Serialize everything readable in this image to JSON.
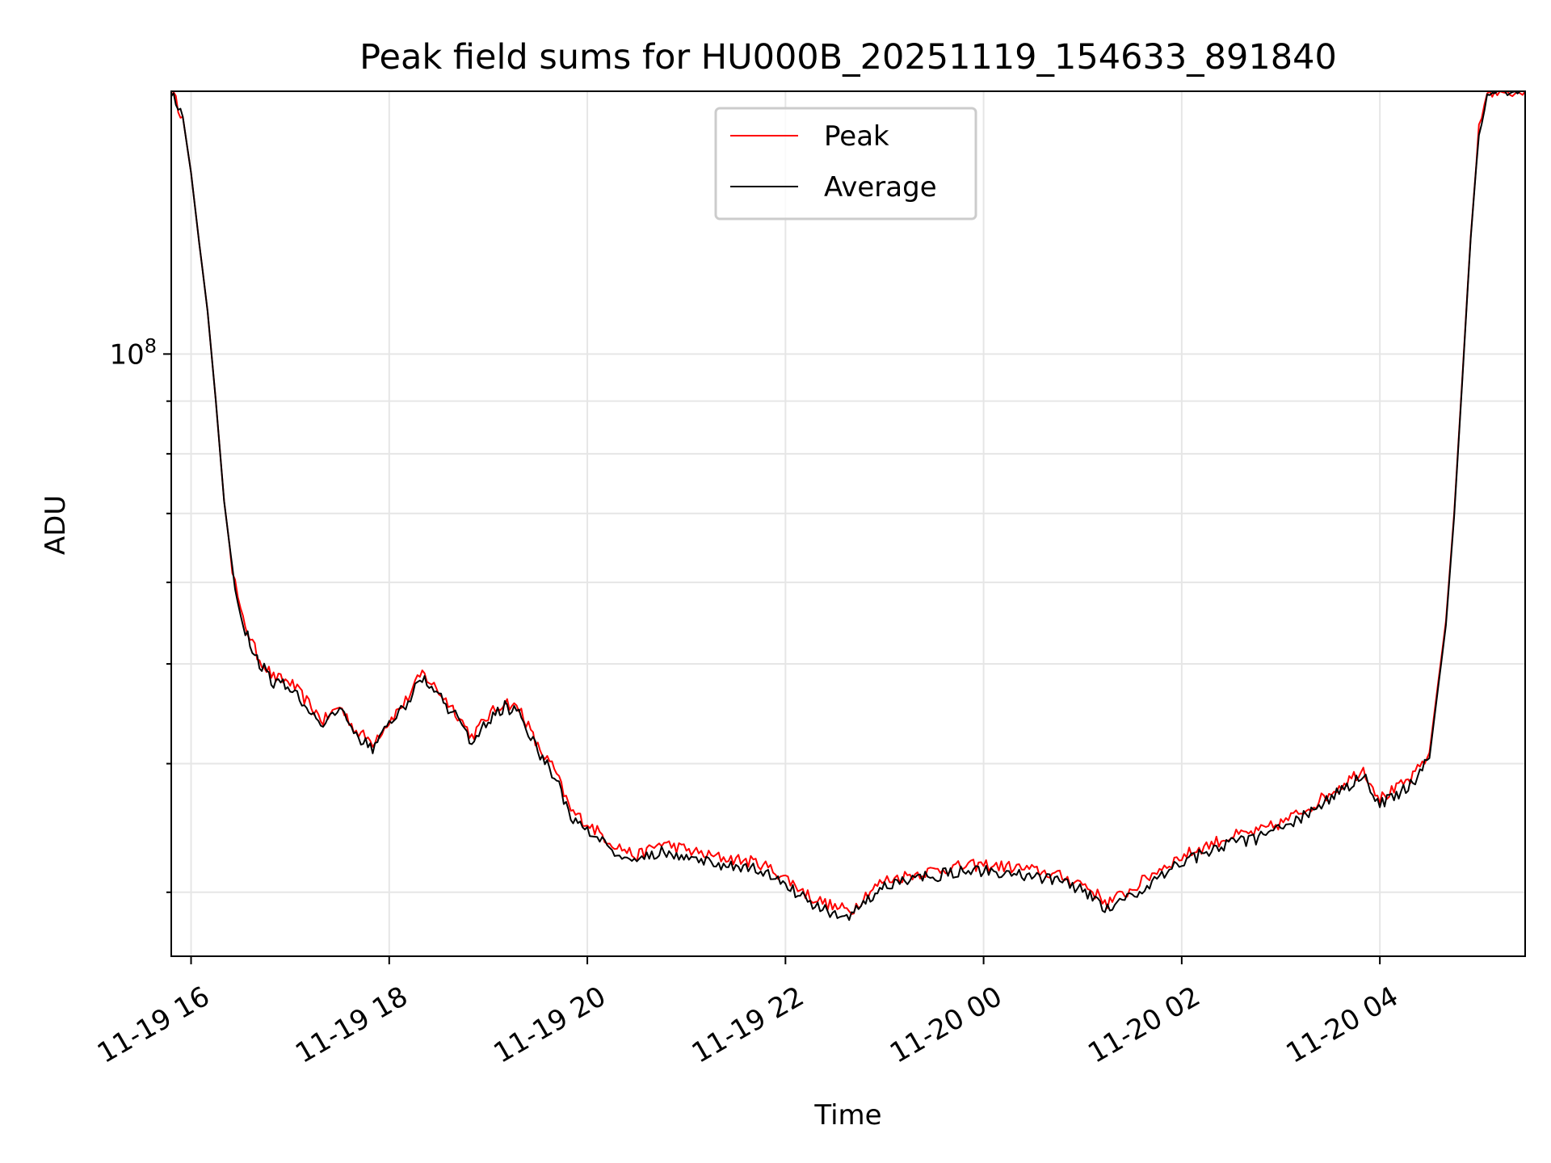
{
  "chart_data": {
    "type": "line",
    "title": "Peak field sums for HU000B_20251119_154633_891840",
    "xlabel": "Time",
    "ylabel": "ADU",
    "yscale": "log",
    "grid": true,
    "legend_position": "upper center",
    "xlim": [
      "2025-11-19 15:48",
      "2025-11-20 05:28"
    ],
    "ylim": [
      26000000,
      180000000
    ],
    "x_ticks": [
      {
        "t": "2025-11-19 16:00",
        "label": "11-19 16"
      },
      {
        "t": "2025-11-19 18:00",
        "label": "11-19 18"
      },
      {
        "t": "2025-11-19 20:00",
        "label": "11-19 20"
      },
      {
        "t": "2025-11-19 22:00",
        "label": "11-19 22"
      },
      {
        "t": "2025-11-20 00:00",
        "label": "11-20 00"
      },
      {
        "t": "2025-11-20 02:00",
        "label": "11-20 02"
      },
      {
        "t": "2025-11-20 04:00",
        "label": "11-20 04"
      }
    ],
    "y_major_ticks": [
      {
        "value": 100000000,
        "base": "10",
        "exp": "8"
      }
    ],
    "y_minor_ticks": [
      30000000,
      40000000,
      50000000,
      60000000,
      70000000,
      80000000,
      90000000,
      200000000
    ],
    "series": [
      {
        "name": "Peak",
        "color": "#ff0000",
        "points": [
          [
            "2025-11-19 15:48",
            180000000
          ],
          [
            "2025-11-19 15:55",
            170000000
          ],
          [
            "2025-11-19 16:00",
            150000000
          ],
          [
            "2025-11-19 16:05",
            128000000
          ],
          [
            "2025-11-19 16:10",
            110000000
          ],
          [
            "2025-11-19 16:15",
            90000000
          ],
          [
            "2025-11-19 16:20",
            72000000
          ],
          [
            "2025-11-19 16:25",
            62000000
          ],
          [
            "2025-11-19 16:30",
            56000000
          ],
          [
            "2025-11-19 16:40",
            51000000
          ],
          [
            "2025-11-19 16:50",
            48500000
          ],
          [
            "2025-11-19 17:00",
            48000000
          ],
          [
            "2025-11-19 17:10",
            46000000
          ],
          [
            "2025-11-19 17:20",
            44000000
          ],
          [
            "2025-11-19 17:30",
            45500000
          ],
          [
            "2025-11-19 17:40",
            43000000
          ],
          [
            "2025-11-19 17:50",
            42000000
          ],
          [
            "2025-11-19 18:00",
            44000000
          ],
          [
            "2025-11-19 18:10",
            46000000
          ],
          [
            "2025-11-19 18:20",
            49000000
          ],
          [
            "2025-11-19 18:30",
            47000000
          ],
          [
            "2025-11-19 18:40",
            45000000
          ],
          [
            "2025-11-19 18:50",
            42500000
          ],
          [
            "2025-11-19 19:00",
            44500000
          ],
          [
            "2025-11-19 19:10",
            46000000
          ],
          [
            "2025-11-19 19:20",
            45000000
          ],
          [
            "2025-11-19 19:30",
            41500000
          ],
          [
            "2025-11-19 19:40",
            39500000
          ],
          [
            "2025-11-19 19:50",
            36000000
          ],
          [
            "2025-11-19 20:00",
            35000000
          ],
          [
            "2025-11-19 20:15",
            33500000
          ],
          [
            "2025-11-19 20:30",
            32500000
          ],
          [
            "2025-11-19 20:45",
            33500000
          ],
          [
            "2025-11-19 21:00",
            33000000
          ],
          [
            "2025-11-19 21:15",
            32500000
          ],
          [
            "2025-11-19 21:30",
            32300000
          ],
          [
            "2025-11-19 21:45",
            32000000
          ],
          [
            "2025-11-19 22:00",
            31000000
          ],
          [
            "2025-11-19 22:15",
            29700000
          ],
          [
            "2025-11-19 22:30",
            29000000
          ],
          [
            "2025-11-19 22:40",
            28800000
          ],
          [
            "2025-11-19 22:50",
            30000000
          ],
          [
            "2025-11-19 23:00",
            30800000
          ],
          [
            "2025-11-19 23:20",
            31300000
          ],
          [
            "2025-11-19 23:40",
            31700000
          ],
          [
            "2025-11-20 00:00",
            31900000
          ],
          [
            "2025-11-20 00:20",
            31700000
          ],
          [
            "2025-11-20 00:40",
            31300000
          ],
          [
            "2025-11-20 01:00",
            30600000
          ],
          [
            "2025-11-20 01:15",
            29300000
          ],
          [
            "2025-11-20 01:30",
            30200000
          ],
          [
            "2025-11-20 01:45",
            31500000
          ],
          [
            "2025-11-20 02:00",
            32500000
          ],
          [
            "2025-11-20 02:15",
            33300000
          ],
          [
            "2025-11-20 02:30",
            34000000
          ],
          [
            "2025-11-20 02:45",
            34300000
          ],
          [
            "2025-11-20 03:00",
            35000000
          ],
          [
            "2025-11-20 03:20",
            36500000
          ],
          [
            "2025-11-20 03:40",
            38500000
          ],
          [
            "2025-11-20 03:50",
            39500000
          ],
          [
            "2025-11-20 04:00",
            37000000
          ],
          [
            "2025-11-20 04:10",
            37800000
          ],
          [
            "2025-11-20 04:20",
            38800000
          ],
          [
            "2025-11-20 04:30",
            41000000
          ],
          [
            "2025-11-20 04:40",
            55000000
          ],
          [
            "2025-11-20 04:45",
            70000000
          ],
          [
            "2025-11-20 04:50",
            95000000
          ],
          [
            "2025-11-20 04:55",
            130000000
          ],
          [
            "2025-11-20 05:00",
            165000000
          ],
          [
            "2025-11-20 05:05",
            180000000
          ],
          [
            "2025-11-20 05:28",
            180000000
          ]
        ]
      },
      {
        "name": "Average",
        "color": "#000000",
        "points": [
          [
            "2025-11-19 15:48",
            180000000
          ],
          [
            "2025-11-19 15:55",
            170000000
          ],
          [
            "2025-11-19 16:00",
            150000000
          ],
          [
            "2025-11-19 16:05",
            128000000
          ],
          [
            "2025-11-19 16:10",
            110000000
          ],
          [
            "2025-11-19 16:15",
            90000000
          ],
          [
            "2025-11-19 16:20",
            72000000
          ],
          [
            "2025-11-19 16:25",
            62000000
          ],
          [
            "2025-11-19 16:30",
            55500000
          ],
          [
            "2025-11-19 16:40",
            50500000
          ],
          [
            "2025-11-19 16:50",
            48000000
          ],
          [
            "2025-11-19 17:00",
            47500000
          ],
          [
            "2025-11-19 17:10",
            45500000
          ],
          [
            "2025-11-19 17:20",
            43500000
          ],
          [
            "2025-11-19 17:30",
            45000000
          ],
          [
            "2025-11-19 17:40",
            42500000
          ],
          [
            "2025-11-19 17:50",
            41500000
          ],
          [
            "2025-11-19 18:00",
            43500000
          ],
          [
            "2025-11-19 18:10",
            45500000
          ],
          [
            "2025-11-19 18:20",
            48500000
          ],
          [
            "2025-11-19 18:30",
            46500000
          ],
          [
            "2025-11-19 18:40",
            44500000
          ],
          [
            "2025-11-19 18:50",
            42000000
          ],
          [
            "2025-11-19 19:00",
            44000000
          ],
          [
            "2025-11-19 19:10",
            45500000
          ],
          [
            "2025-11-19 19:20",
            44500000
          ],
          [
            "2025-11-19 19:30",
            41000000
          ],
          [
            "2025-11-19 19:40",
            39000000
          ],
          [
            "2025-11-19 19:50",
            35500000
          ],
          [
            "2025-11-19 20:00",
            34500000
          ],
          [
            "2025-11-19 20:15",
            33000000
          ],
          [
            "2025-11-19 20:30",
            32000000
          ],
          [
            "2025-11-19 20:45",
            33000000
          ],
          [
            "2025-11-19 21:00",
            32500000
          ],
          [
            "2025-11-19 21:15",
            32000000
          ],
          [
            "2025-11-19 21:30",
            31800000
          ],
          [
            "2025-11-19 21:45",
            31500000
          ],
          [
            "2025-11-19 22:00",
            30500000
          ],
          [
            "2025-11-19 22:15",
            29300000
          ],
          [
            "2025-11-19 22:30",
            28600000
          ],
          [
            "2025-11-19 22:40",
            28400000
          ],
          [
            "2025-11-19 22:50",
            29600000
          ],
          [
            "2025-11-19 23:00",
            30400000
          ],
          [
            "2025-11-19 23:20",
            30900000
          ],
          [
            "2025-11-19 23:40",
            31300000
          ],
          [
            "2025-11-20 00:00",
            31500000
          ],
          [
            "2025-11-20 00:20",
            31300000
          ],
          [
            "2025-11-20 00:40",
            30900000
          ],
          [
            "2025-11-20 01:00",
            30200000
          ],
          [
            "2025-11-20 01:15",
            28900000
          ],
          [
            "2025-11-20 01:30",
            29800000
          ],
          [
            "2025-11-20 01:45",
            31000000
          ],
          [
            "2025-11-20 02:00",
            32000000
          ],
          [
            "2025-11-20 02:15",
            32800000
          ],
          [
            "2025-11-20 02:30",
            33500000
          ],
          [
            "2025-11-20 02:45",
            33800000
          ],
          [
            "2025-11-20 03:00",
            34500000
          ],
          [
            "2025-11-20 03:20",
            36000000
          ],
          [
            "2025-11-20 03:40",
            38000000
          ],
          [
            "2025-11-20 03:50",
            39000000
          ],
          [
            "2025-11-20 04:00",
            36500000
          ],
          [
            "2025-11-20 04:10",
            37300000
          ],
          [
            "2025-11-20 04:20",
            38300000
          ],
          [
            "2025-11-20 04:30",
            40500000
          ],
          [
            "2025-11-20 04:40",
            54500000
          ],
          [
            "2025-11-20 04:45",
            69500000
          ],
          [
            "2025-11-20 04:50",
            94500000
          ],
          [
            "2025-11-20 04:55",
            129500000
          ],
          [
            "2025-11-20 05:00",
            164500000
          ],
          [
            "2025-11-20 05:05",
            180000000
          ],
          [
            "2025-11-20 05:28",
            180000000
          ]
        ]
      }
    ]
  }
}
